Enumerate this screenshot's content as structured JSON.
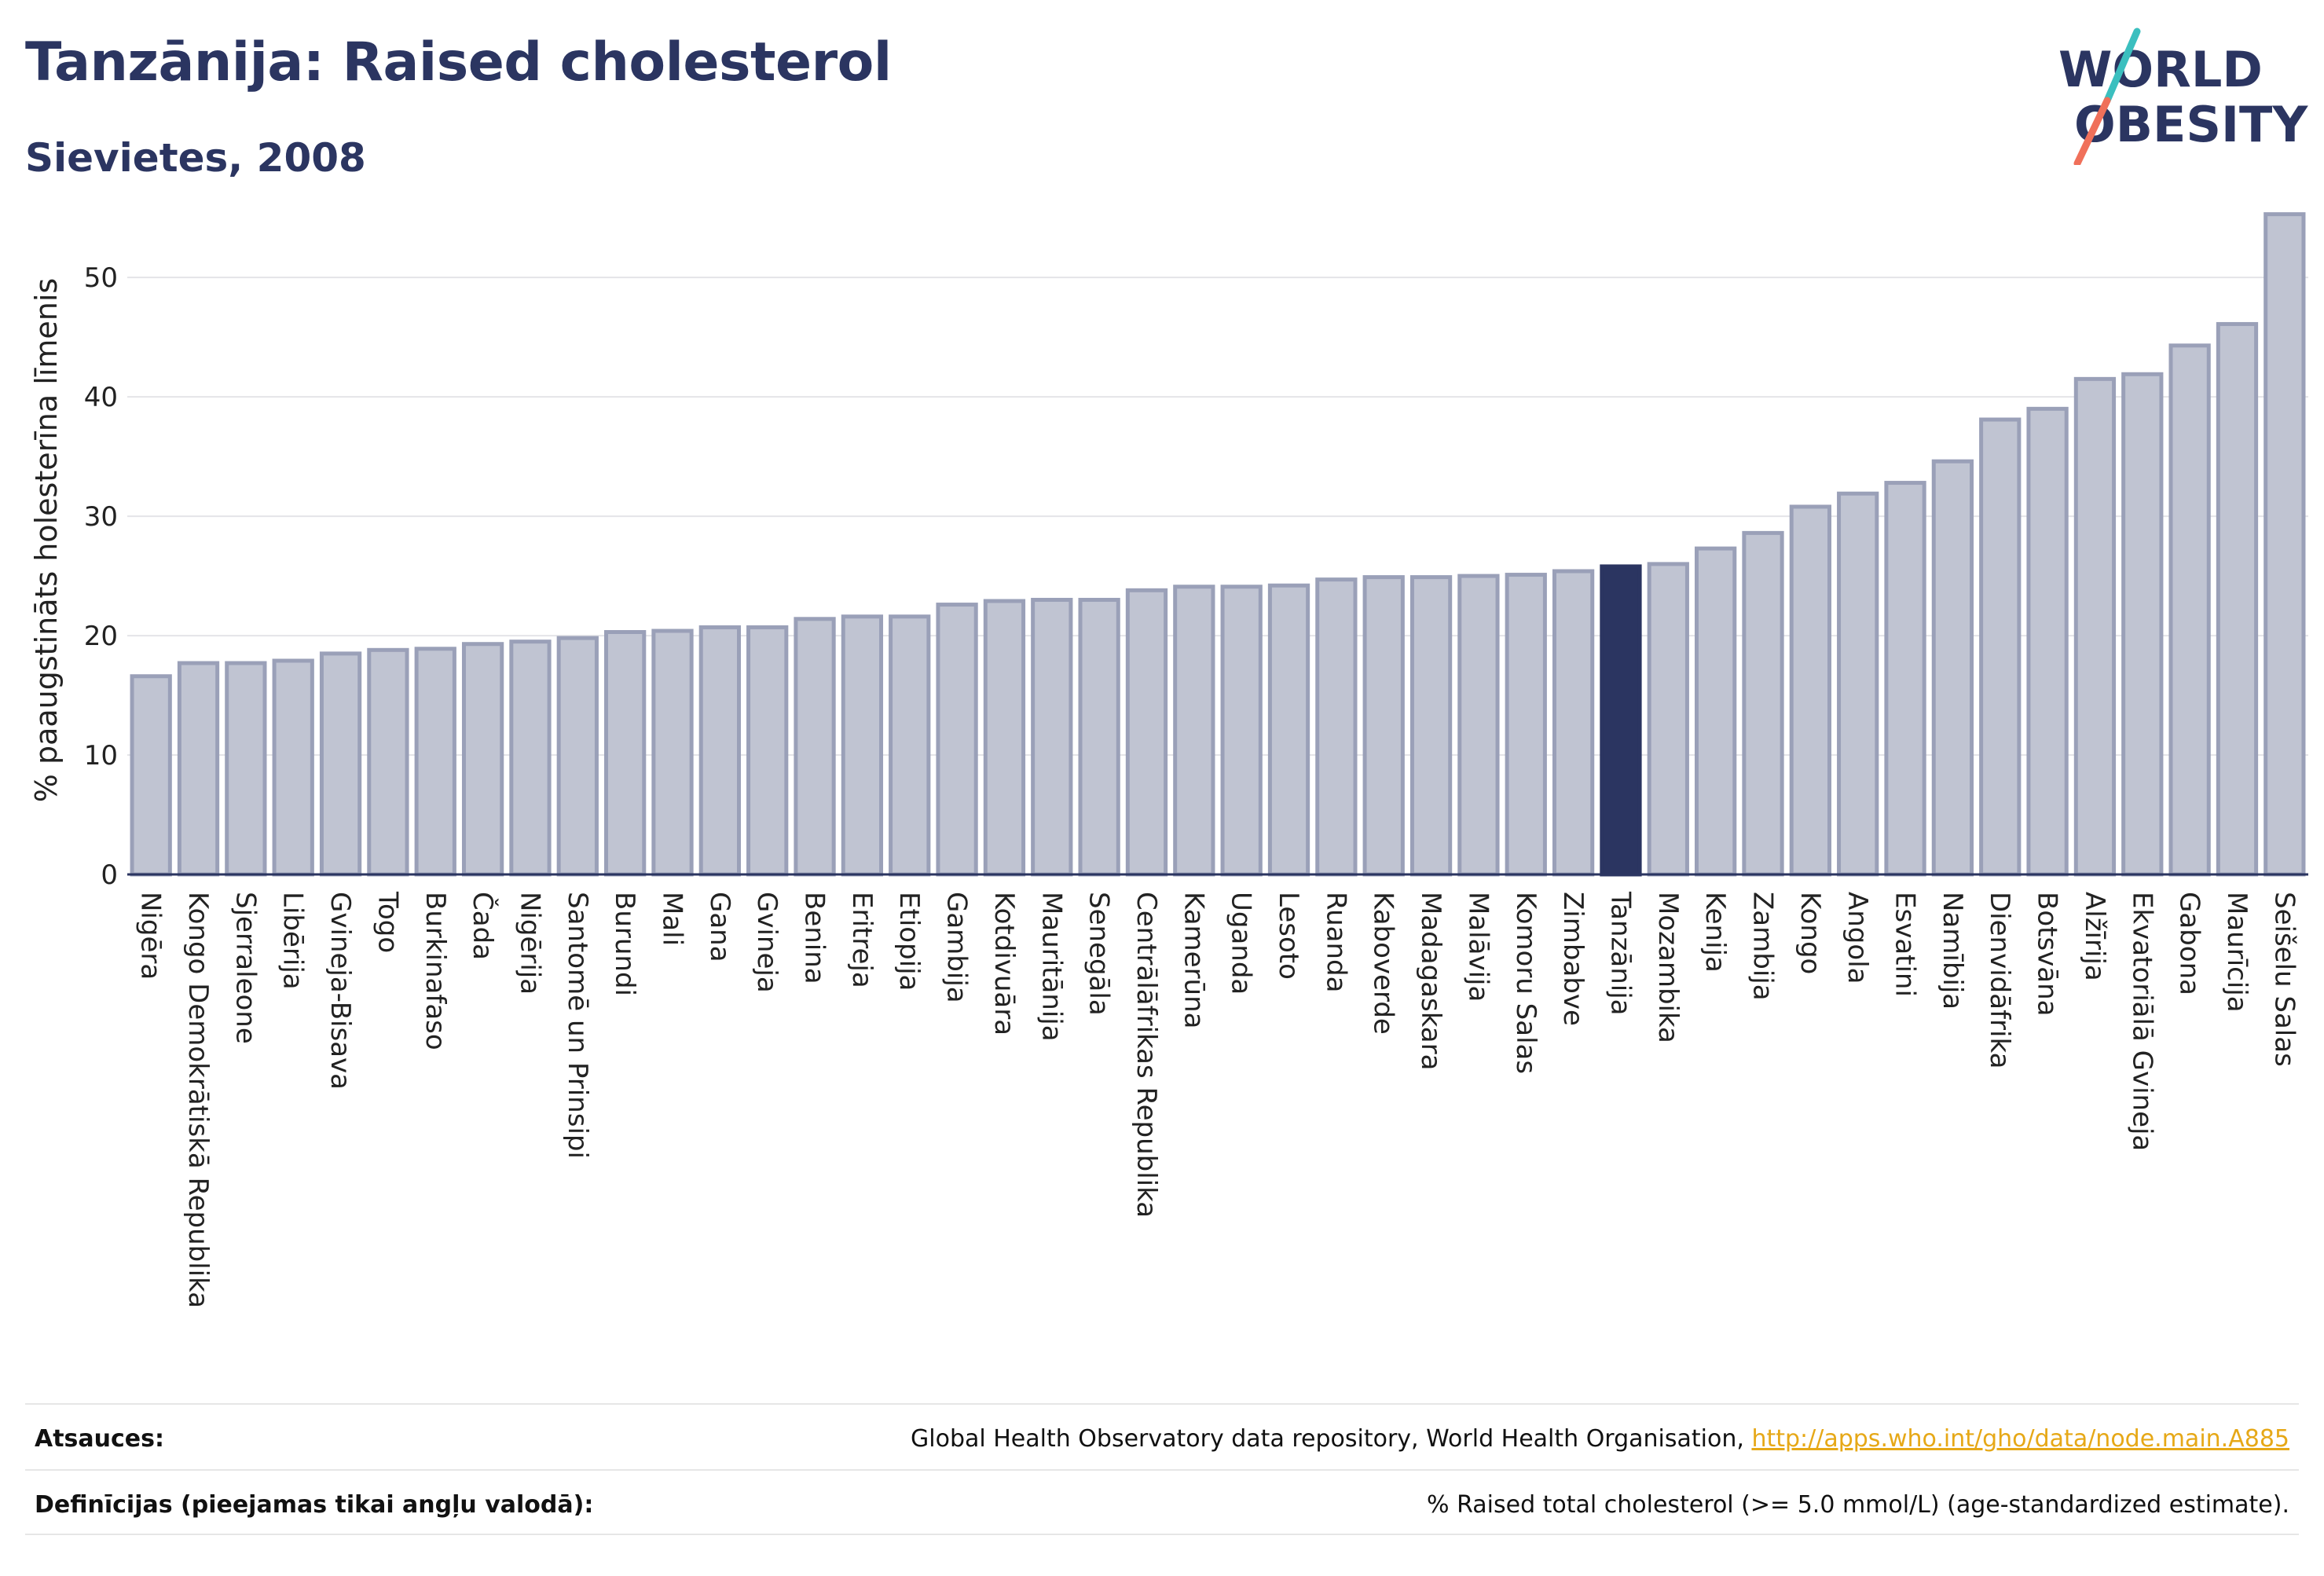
{
  "header": {
    "title": "Tanzānija: Raised cholesterol",
    "subtitle": "Sievietes, 2008"
  },
  "logo": {
    "line1": "WORLD",
    "line2": "OBESITY",
    "colors": {
      "text": "#2b3561",
      "slash_top": "#3bbfbf",
      "slash_bottom": "#f0705a"
    }
  },
  "chart_data": {
    "type": "bar",
    "ylabel": "% paaugstināts holesterīna līmenis",
    "xlabel": "",
    "ylim": [
      0,
      56
    ],
    "yticks": [
      0,
      10,
      20,
      30,
      40,
      50
    ],
    "highlight": "Tanzānija",
    "colors": {
      "bar": "#c0c4d2",
      "bar_edge": "#9aa0b8",
      "highlight": "#2b3561"
    },
    "categories": [
      "Nigēra",
      "Kongo Demokrātiskā Republika",
      "Sjerraleone",
      "Libērija",
      "Gvineja-Bisava",
      "Togo",
      "Burkinafaso",
      "Čada",
      "Nigērija",
      "Santomē un Prinsipi",
      "Burundi",
      "Mali",
      "Gana",
      "Gvineja",
      "Benina",
      "Eritreja",
      "Etiopija",
      "Gambija",
      "Kotdivuāra",
      "Mauritānija",
      "Senegāla",
      "Centrālāfrikas Republika",
      "Kamerūna",
      "Uganda",
      "Lesoto",
      "Ruanda",
      "Kaboverde",
      "Madagaskara",
      "Malāvija",
      "Komoru Salas",
      "Zimbabve",
      "Tanzānija",
      "Mozambika",
      "Kenija",
      "Zambija",
      "Kongo",
      "Angola",
      "Esvatini",
      "Namībija",
      "Dienvidāfrika",
      "Botsvāna",
      "Alžīrija",
      "Ekvatoriālā Gvineja",
      "Gabona",
      "Maurīcija",
      "Seišelu Salas"
    ],
    "values": [
      16.6,
      17.7,
      17.7,
      17.9,
      18.5,
      18.8,
      18.9,
      19.3,
      19.5,
      19.8,
      20.3,
      20.4,
      20.7,
      20.7,
      21.4,
      21.6,
      21.6,
      22.6,
      22.9,
      23.0,
      23.0,
      23.8,
      24.1,
      24.1,
      24.2,
      24.7,
      24.9,
      24.9,
      25.0,
      25.1,
      25.4,
      25.8,
      26.0,
      27.3,
      28.6,
      30.8,
      31.9,
      32.8,
      34.6,
      38.1,
      39.0,
      41.5,
      41.9,
      44.3,
      46.1,
      55.3
    ]
  },
  "footer": {
    "sources_label": "Atsauces:",
    "sources_text": "Global Health Observatory data repository, World Health Organisation, ",
    "sources_link": "http://apps.who.int/gho/data/node.main.A885",
    "definitions_label": "Definīcijas (pieejamas tikai angļu valodā):",
    "definitions_text": "% Raised total cholesterol (>= 5.0 mmol/L) (age-standardized estimate)."
  }
}
